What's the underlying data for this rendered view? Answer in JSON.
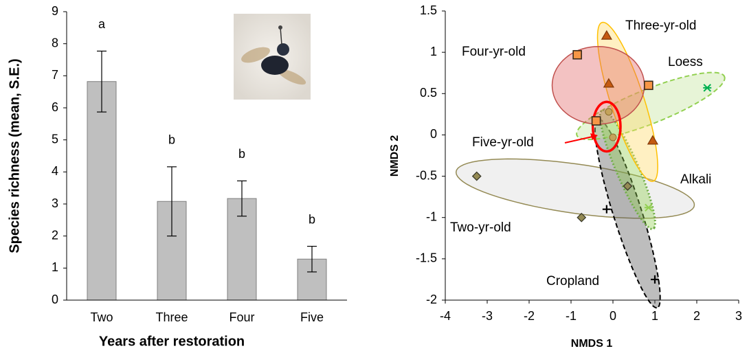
{
  "chart_data": [
    {
      "type": "bar",
      "categories": [
        "Two",
        "Three",
        "Four",
        "Five"
      ],
      "values": [
        6.82,
        3.08,
        3.17,
        1.28
      ],
      "errors": [
        0.95,
        1.08,
        0.55,
        0.4
      ],
      "sig_letters": [
        "a",
        "b",
        "b",
        "b"
      ],
      "color": "#bfbfbf",
      "ylim": [
        0,
        9
      ],
      "yticks": [
        0,
        1,
        2,
        3,
        4,
        5,
        6,
        7,
        8,
        9
      ],
      "y_label": "Species richness (mean, S.E.)",
      "x_label": "Years after restoration"
    },
    {
      "type": "scatter",
      "xlim": [
        -4,
        3
      ],
      "xticks": [
        -4,
        -3,
        -2,
        -1,
        0,
        1,
        2,
        3
      ],
      "ylim": [
        -2,
        1.5
      ],
      "yticks": [
        -2,
        -1.5,
        -1,
        -0.5,
        0,
        0.5,
        1,
        1.5
      ],
      "x_label": "NMDS 1",
      "y_label": "NMDS 2",
      "ellipse_opacity": 0.4,
      "series": [
        {
          "name": "Two-yr-old",
          "marker": "diamond",
          "color": "#948a54",
          "x": [
            -3.25,
            -0.75,
            0.35
          ],
          "y": [
            -0.5,
            -1.0,
            -0.62
          ],
          "ellipse": [
            -0.9,
            -0.65,
            2.85,
            0.3,
            -4
          ],
          "ellipse_fill": "#d9d9d9",
          "ellipse_stroke": "#948a54",
          "dash": "solid"
        },
        {
          "name": "Cropland",
          "marker": "plus",
          "color": "#000000",
          "x": [
            -0.15,
            1.0
          ],
          "y": [
            -0.9,
            -1.75
          ],
          "ellipse": [
            0.35,
            -0.95,
            1.35,
            0.3,
            -57
          ],
          "ellipse_fill": "#595959",
          "ellipse_stroke": "#000000",
          "dash": "dashed"
        },
        {
          "name": "Loess",
          "marker": "x",
          "color": "#00b050",
          "x": [
            2.25
          ],
          "y": [
            0.57
          ],
          "ellipse": [
            0.9,
            0.35,
            1.8,
            0.22,
            11
          ],
          "ellipse_fill": "#c3e39b",
          "ellipse_stroke": "#92d050",
          "dash": "dashed"
        },
        {
          "name": "Alkali",
          "marker": "x",
          "color": "#92d050",
          "x": [
            0.85
          ],
          "y": [
            -0.88
          ],
          "ellipse": [
            0.35,
            -0.42,
            0.95,
            0.22,
            -48
          ],
          "ellipse_fill": "#92d050",
          "ellipse_stroke": "#70ad47",
          "dash": "dotted"
        },
        {
          "name": "Three-yr-old",
          "marker": "triangle",
          "color": "#c55a11",
          "x": [
            -0.15,
            -0.1,
            0.95
          ],
          "y": [
            1.2,
            0.62,
            -0.07
          ],
          "ellipse": [
            0.35,
            0.4,
            1.15,
            0.35,
            -55
          ],
          "ellipse_fill": "#ffd966",
          "ellipse_stroke": "#ffc000",
          "dash": "solid"
        },
        {
          "name": "Four-yr-old",
          "marker": "square",
          "color": "#f79646",
          "x": [
            -0.85,
            0.85,
            -0.4
          ],
          "y": [
            0.97,
            0.6,
            0.17
          ],
          "ellipse": [
            -0.35,
            0.6,
            1.1,
            0.47,
            0
          ],
          "ellipse_fill": "#e06666",
          "ellipse_stroke": "#c0504d",
          "dash": "solid"
        },
        {
          "name": "Five-yr-old",
          "marker": "circle",
          "color": "#c4a35a",
          "x": [
            -0.1,
            0.0
          ],
          "y": [
            0.28,
            -0.03
          ],
          "ellipse": [
            -0.15,
            0.1,
            0.33,
            0.3,
            0
          ],
          "ellipse_fill": "none",
          "ellipse_stroke": "#ff0000",
          "dash": "thick"
        }
      ]
    }
  ]
}
